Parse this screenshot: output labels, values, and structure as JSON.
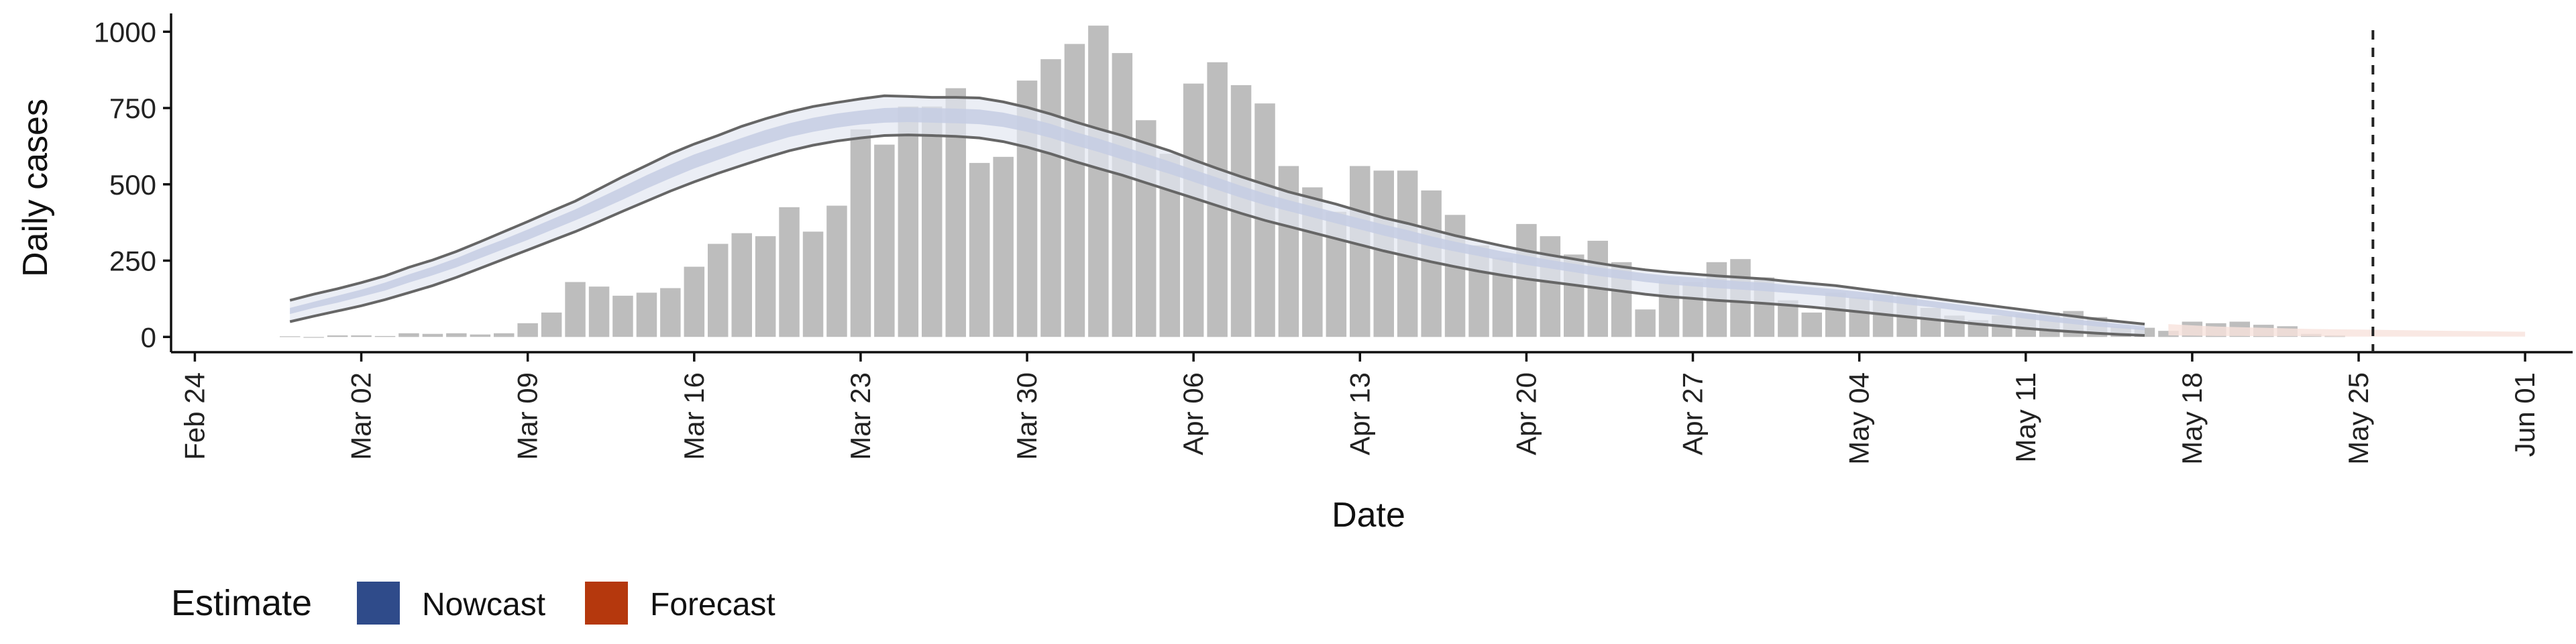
{
  "chart_data": {
    "type": "bar",
    "xlabel": "Date",
    "ylabel": "Daily cases",
    "x_range": [
      "2020-02-23",
      "2020-06-03"
    ],
    "x_ticks": [
      "Feb 24",
      "Mar 02",
      "Mar 09",
      "Mar 16",
      "Mar 23",
      "Mar 30",
      "Apr 06",
      "Apr 13",
      "Apr 20",
      "Apr 27",
      "May 04",
      "May 11",
      "May 18",
      "May 25",
      "Jun 01"
    ],
    "x_tick_dates": [
      "2020-02-24",
      "2020-03-02",
      "2020-03-09",
      "2020-03-16",
      "2020-03-23",
      "2020-03-30",
      "2020-04-06",
      "2020-04-13",
      "2020-04-20",
      "2020-04-27",
      "2020-05-04",
      "2020-05-11",
      "2020-05-18",
      "2020-05-25",
      "2020-06-01"
    ],
    "ylim": [
      -50,
      1060
    ],
    "y_ticks": [
      0,
      250,
      500,
      750,
      1000
    ],
    "y_tick_labels": [
      "0",
      "250",
      "500",
      "750",
      "1000"
    ],
    "reference_line_date": "2020-05-25",
    "grid": false,
    "bars": {
      "start_date": "2020-02-28",
      "values": [
        2,
        0,
        5,
        5,
        3,
        12,
        10,
        12,
        8,
        12,
        45,
        80,
        180,
        165,
        135,
        145,
        160,
        230,
        305,
        340,
        330,
        425,
        345,
        430,
        680,
        630,
        755,
        755,
        815,
        570,
        590,
        840,
        910,
        960,
        1020,
        930,
        710,
        600,
        830,
        900,
        825,
        765,
        560,
        490,
        410,
        560,
        545,
        545,
        480,
        400,
        300,
        260,
        370,
        330,
        270,
        315,
        245,
        90,
        185,
        180,
        245,
        255,
        195,
        120,
        80,
        145,
        130,
        140,
        135,
        95,
        70,
        55,
        70,
        75,
        80,
        85,
        65,
        35,
        30,
        20,
        50,
        45,
        50,
        40,
        35,
        10,
        5
      ]
    },
    "nowcast": {
      "start_date": "2020-02-28",
      "outer_upper": [
        120,
        140,
        158,
        178,
        200,
        228,
        252,
        280,
        312,
        345,
        378,
        412,
        445,
        485,
        525,
        562,
        600,
        632,
        660,
        690,
        715,
        737,
        755,
        768,
        780,
        790,
        788,
        785,
        785,
        783,
        770,
        752,
        730,
        705,
        682,
        660,
        635,
        610,
        580,
        552,
        525,
        500,
        475,
        455,
        435,
        412,
        390,
        372,
        352,
        332,
        315,
        298,
        282,
        268,
        255,
        242,
        230,
        220,
        212,
        206,
        200,
        195,
        190,
        182,
        175,
        168,
        158,
        148,
        138,
        128,
        118,
        108,
        98,
        88,
        78,
        68,
        58,
        50,
        42
      ],
      "inner_upper": [
        95,
        115,
        135,
        155,
        178,
        205,
        230,
        258,
        290,
        320,
        352,
        385,
        418,
        455,
        492,
        530,
        565,
        598,
        625,
        652,
        678,
        700,
        718,
        732,
        742,
        750,
        752,
        750,
        748,
        745,
        735,
        718,
        698,
        672,
        650,
        625,
        600,
        575,
        548,
        522,
        495,
        470,
        448,
        428,
        408,
        388,
        368,
        350,
        330,
        312,
        296,
        280,
        266,
        252,
        240,
        228,
        218,
        208,
        200,
        195,
        188,
        182,
        178,
        170,
        163,
        156,
        148,
        138,
        128,
        118,
        108,
        98,
        88,
        78,
        68,
        58,
        50,
        42,
        35
      ],
      "inner_lower": [
        75,
        95,
        112,
        132,
        152,
        178,
        202,
        228,
        258,
        288,
        318,
        350,
        382,
        415,
        450,
        486,
        520,
        552,
        580,
        608,
        632,
        655,
        672,
        686,
        696,
        702,
        704,
        702,
        700,
        697,
        688,
        672,
        652,
        628,
        606,
        582,
        558,
        534,
        508,
        482,
        456,
        432,
        412,
        392,
        372,
        352,
        332,
        314,
        296,
        280,
        265,
        250,
        236,
        224,
        212,
        200,
        190,
        180,
        172,
        166,
        160,
        155,
        150,
        144,
        138,
        132,
        124,
        116,
        106,
        98,
        88,
        78,
        70,
        60,
        50,
        42,
        34,
        28,
        22
      ],
      "outer_lower": [
        50,
        68,
        85,
        102,
        122,
        145,
        168,
        195,
        225,
        255,
        285,
        315,
        345,
        378,
        412,
        445,
        478,
        508,
        536,
        562,
        587,
        610,
        628,
        642,
        652,
        660,
        662,
        660,
        657,
        652,
        640,
        622,
        600,
        575,
        552,
        530,
        505,
        480,
        455,
        430,
        405,
        382,
        362,
        342,
        322,
        302,
        282,
        264,
        246,
        230,
        215,
        202,
        190,
        180,
        170,
        160,
        150,
        140,
        132,
        126,
        120,
        115,
        110,
        104,
        98,
        90,
        82,
        74,
        66,
        58,
        50,
        42,
        35,
        28,
        22,
        17,
        12,
        8,
        5
      ]
    },
    "forecast": {
      "start_date": "2020-05-17",
      "upper": [
        42,
        38,
        34,
        32,
        30,
        28,
        26,
        25,
        24,
        23,
        22,
        21,
        20,
        19,
        18,
        17
      ],
      "lower": [
        5,
        4,
        3,
        3,
        2,
        2,
        2,
        1,
        1,
        1,
        1,
        1,
        1,
        1,
        1,
        1
      ]
    },
    "legend": {
      "title": "Estimate",
      "position": "bottom-left",
      "items": [
        {
          "label": "Nowcast",
          "color": "#2f4b8a"
        },
        {
          "label": "Forecast",
          "color": "#b5380d"
        }
      ]
    },
    "colors": {
      "bar": "#bdbdbd",
      "outer_band": "#e3e7f1",
      "inner_band": "#c6cde3",
      "band_line": "#666666",
      "forecast_band": "#f8e2dc",
      "reference_line": "#222222"
    }
  }
}
